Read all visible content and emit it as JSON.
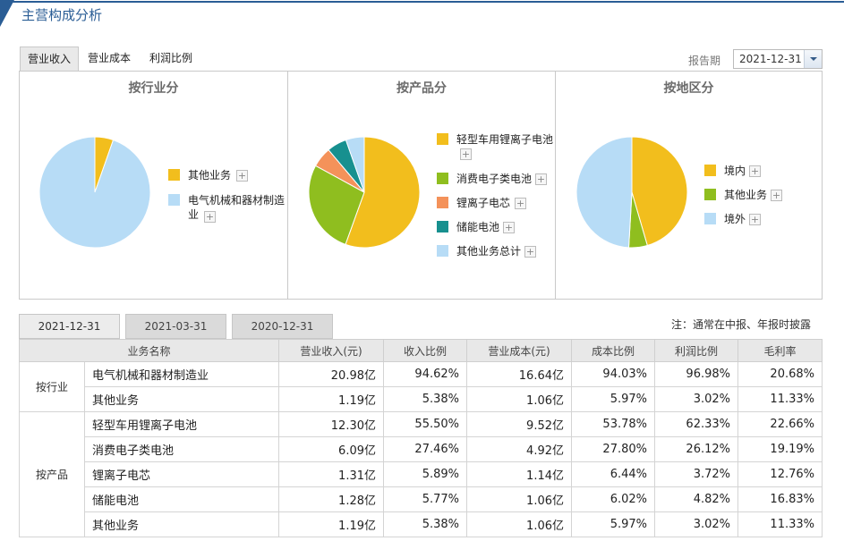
{
  "header": {
    "title": "主营构成分析"
  },
  "tabs": [
    {
      "label": "营业收入",
      "active": true
    },
    {
      "label": "营业成本",
      "active": false
    },
    {
      "label": "利润比例",
      "active": false
    }
  ],
  "period": {
    "label": "报告期",
    "value": "2021-12-31"
  },
  "panels": [
    {
      "title": "按行业分",
      "legend": [
        {
          "label": "其他业务",
          "color": "#f2be1d"
        },
        {
          "label": "电气机械和器材制造业",
          "color": "#b7dcf6"
        }
      ]
    },
    {
      "title": "按产品分",
      "legend": [
        {
          "label": "轻型车用锂离子电池",
          "color": "#f2be1d"
        },
        {
          "label": "消费电子类电池",
          "color": "#8fbe1f"
        },
        {
          "label": "锂离子电芯",
          "color": "#f4925a"
        },
        {
          "label": "储能电池",
          "color": "#17908f"
        },
        {
          "label": "其他业务总计",
          "color": "#b7dcf6"
        }
      ]
    },
    {
      "title": "按地区分",
      "legend": [
        {
          "label": "境内",
          "color": "#f2be1d"
        },
        {
          "label": "其他业务",
          "color": "#8fbe1f"
        },
        {
          "label": "境外",
          "color": "#b7dcf6"
        }
      ]
    }
  ],
  "chart_data": [
    {
      "type": "pie",
      "title": "按行业分",
      "categories": [
        "其他业务",
        "电气机械和器材制造业"
      ],
      "values": [
        5.38,
        94.62
      ],
      "colors": [
        "#f2be1d",
        "#b7dcf6"
      ]
    },
    {
      "type": "pie",
      "title": "按产品分",
      "categories": [
        "轻型车用锂离子电池",
        "消费电子类电池",
        "锂离子电芯",
        "储能电池",
        "其他业务总计"
      ],
      "values": [
        55.5,
        27.46,
        5.89,
        5.77,
        5.38
      ],
      "colors": [
        "#f2be1d",
        "#8fbe1f",
        "#f4925a",
        "#17908f",
        "#b7dcf6"
      ]
    },
    {
      "type": "pie",
      "title": "按地区分",
      "categories": [
        "境内",
        "其他业务",
        "境外"
      ],
      "values": [
        45.5,
        5.4,
        49.1
      ],
      "colors": [
        "#f2be1d",
        "#8fbe1f",
        "#b7dcf6"
      ]
    }
  ],
  "date_tabs": [
    {
      "label": "2021-12-31",
      "active": true
    },
    {
      "label": "2021-03-31",
      "active": false
    },
    {
      "label": "2020-12-31",
      "active": false
    }
  ],
  "note": "注：通常在中报、年报时披露",
  "table": {
    "headers": [
      "业务名称",
      "营业收入(元)",
      "收入比例",
      "营业成本(元)",
      "成本比例",
      "利润比例",
      "毛利率"
    ],
    "groups": [
      {
        "name": "按行业",
        "rows": [
          [
            "电气机械和器材制造业",
            "20.98亿",
            "94.62%",
            "16.64亿",
            "94.03%",
            "96.98%",
            "20.68%"
          ],
          [
            "其他业务",
            "1.19亿",
            "5.38%",
            "1.06亿",
            "5.97%",
            "3.02%",
            "11.33%"
          ]
        ]
      },
      {
        "name": "按产品",
        "rows": [
          [
            "轻型车用锂离子电池",
            "12.30亿",
            "55.50%",
            "9.52亿",
            "53.78%",
            "62.33%",
            "22.66%"
          ],
          [
            "消费电子类电池",
            "6.09亿",
            "27.46%",
            "4.92亿",
            "27.80%",
            "26.12%",
            "19.19%"
          ],
          [
            "锂离子电芯",
            "1.31亿",
            "5.89%",
            "1.14亿",
            "6.44%",
            "3.72%",
            "12.76%"
          ],
          [
            "储能电池",
            "1.28亿",
            "5.77%",
            "1.06亿",
            "6.02%",
            "4.82%",
            "16.83%"
          ],
          [
            "其他业务",
            "1.19亿",
            "5.38%",
            "1.06亿",
            "5.97%",
            "3.02%",
            "11.33%"
          ]
        ]
      }
    ]
  }
}
